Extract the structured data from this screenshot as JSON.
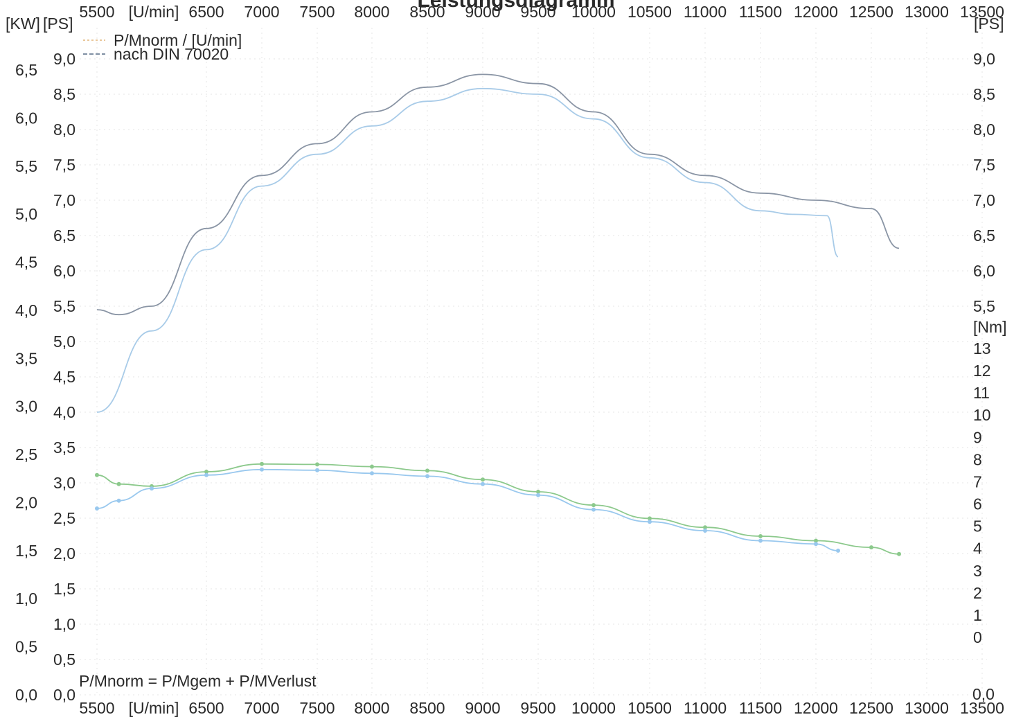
{
  "chart_data": {
    "type": "line",
    "title": "Leistungsdiagramm",
    "x_label": "[U/min]",
    "x_ticks": [
      5500,
      6500,
      7000,
      7500,
      8000,
      8500,
      9000,
      9500,
      10000,
      10500,
      11000,
      11500,
      12000,
      12500,
      13000,
      13500
    ],
    "xlim": [
      5500,
      13500
    ],
    "y_left_kw_label": "[KW]",
    "y_left_kw_ticks": [
      "6,5",
      "6,0",
      "5,5",
      "5,0",
      "4,5",
      "4,0",
      "3,5",
      "3,0",
      "2,5",
      "2,0",
      "1,5",
      "1,0",
      "0,5",
      "0,0"
    ],
    "y_left_kw_ticks_values": [
      6.5,
      6.0,
      5.5,
      5.0,
      4.5,
      4.0,
      3.5,
      3.0,
      2.5,
      2.0,
      1.5,
      1.0,
      0.5,
      0.0
    ],
    "y_left_ps_label": "[PS]",
    "y_left_ps_ticks": [
      "9,0",
      "8,5",
      "8,0",
      "7,5",
      "7,0",
      "6,5",
      "6,0",
      "5,5",
      "5,0",
      "4,5",
      "4,0",
      "3,5",
      "3,0",
      "2,5",
      "2,0",
      "1,5",
      "1,0",
      "0,5",
      "0,0"
    ],
    "y_right_ps_label": "[PS]",
    "y_right_ps_ticks": [
      "9,0",
      "8,5",
      "8,0",
      "7,5",
      "7,0",
      "6,5",
      "6,0",
      "5,5"
    ],
    "y_right_ps_bottom": "0,0",
    "y_right_nm_label": "[Nm]",
    "y_right_nm_ticks": [
      "13",
      "12",
      "11",
      "10",
      "9",
      "8",
      "7",
      "6",
      "5",
      "4",
      "3",
      "2",
      "1",
      "0"
    ],
    "ps_range": [
      0.0,
      9.0
    ],
    "nm_range": [
      0,
      13
    ],
    "legend": [
      {
        "label": "P/Mnorm / [U/min]",
        "color": "#e9c79a"
      },
      {
        "label": "nach DIN 70020",
        "color": "#7f8fa3"
      }
    ],
    "legend_placement": "top-left",
    "annotation": "P/Mnorm = P/Mgem + P/MVerlust",
    "series": [
      {
        "role": "power-norm",
        "unit": "PS",
        "color": "#8a95a5",
        "markers": false,
        "x": [
          5500,
          5700,
          6000,
          6500,
          7000,
          7500,
          8000,
          8500,
          9000,
          9500,
          10000,
          10500,
          11000,
          11500,
          12000,
          12500,
          12750
        ],
        "y": [
          5.45,
          5.38,
          5.5,
          6.6,
          7.35,
          7.8,
          8.25,
          8.6,
          8.78,
          8.65,
          8.25,
          7.65,
          7.35,
          7.1,
          7.0,
          6.88,
          6.32
        ]
      },
      {
        "role": "power-din",
        "unit": "PS",
        "color": "#a8cbe8",
        "markers": false,
        "x": [
          5500,
          6000,
          6500,
          7000,
          7500,
          8000,
          8500,
          9000,
          9500,
          10000,
          10500,
          11000,
          11500,
          11800,
          12100,
          12200
        ],
        "y": [
          4.0,
          5.15,
          6.3,
          7.2,
          7.65,
          8.05,
          8.4,
          8.58,
          8.5,
          8.15,
          7.6,
          7.25,
          6.85,
          6.8,
          6.78,
          6.2
        ]
      },
      {
        "role": "torque-norm",
        "unit": "Nm",
        "color": "#8cc98c",
        "markers": true,
        "x": [
          5500,
          5700,
          6000,
          6500,
          7000,
          7500,
          8000,
          8500,
          9000,
          9500,
          10000,
          10500,
          11000,
          11500,
          12000,
          12500,
          12750
        ],
        "y": [
          7.3,
          6.9,
          6.8,
          7.45,
          7.8,
          7.78,
          7.68,
          7.5,
          7.1,
          6.55,
          5.95,
          5.35,
          4.95,
          4.55,
          4.35,
          4.05,
          3.75
        ]
      },
      {
        "role": "torque-din",
        "unit": "Nm",
        "color": "#99c8ee",
        "markers": true,
        "x": [
          5500,
          5700,
          6000,
          6500,
          7000,
          7500,
          8000,
          8500,
          9000,
          9500,
          10000,
          10500,
          11000,
          11500,
          12000,
          12200
        ],
        "y": [
          5.8,
          6.15,
          6.7,
          7.3,
          7.55,
          7.52,
          7.38,
          7.25,
          6.9,
          6.4,
          5.75,
          5.2,
          4.8,
          4.35,
          4.2,
          3.9
        ]
      }
    ]
  }
}
